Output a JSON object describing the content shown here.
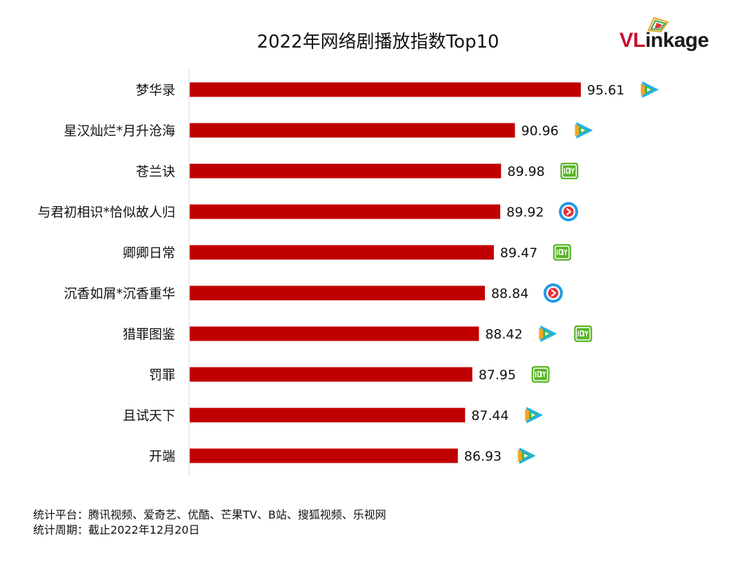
{
  "chart_data": {
    "type": "bar",
    "orientation": "horizontal",
    "title": "2022年网络剧播放指数Top10",
    "categories": [
      "梦华录",
      "星汉灿烂*月升沧海",
      "苍兰诀",
      "与君初相识*恰似故人归",
      "卿卿日常",
      "沉香如屑*沉香重华",
      "猎罪图鉴",
      "罚罪",
      "且试天下",
      "开端"
    ],
    "values": [
      95.61,
      90.96,
      89.98,
      89.92,
      89.47,
      88.84,
      88.42,
      87.95,
      87.44,
      86.93
    ],
    "value_labels": [
      "95.61",
      "90.96",
      "89.98",
      "89.92",
      "89.47",
      "88.84",
      "88.42",
      "87.95",
      "87.44",
      "86.93"
    ],
    "platforms": [
      [
        "tencent-video"
      ],
      [
        "tencent-video"
      ],
      [
        "iqiyi"
      ],
      [
        "youku"
      ],
      [
        "iqiyi"
      ],
      [
        "youku"
      ],
      [
        "tencent-video",
        "iqiyi"
      ],
      [
        "iqiyi"
      ],
      [
        "tencent-video"
      ],
      [
        "tencent-video"
      ]
    ],
    "xlim": [
      68,
      96
    ],
    "bar_color": "#c00000",
    "grid": false,
    "xlabel": "",
    "ylabel": ""
  },
  "logo": {
    "text_v": "VL",
    "text_rest": "inkage",
    "brand_color": "#c8102e"
  },
  "footer": {
    "line1": "统计平台：腾讯视频、爱奇艺、优酷、芒果TV、B站、搜狐视频、乐视网",
    "line2": "统计周期：截止2022年12月20日"
  }
}
